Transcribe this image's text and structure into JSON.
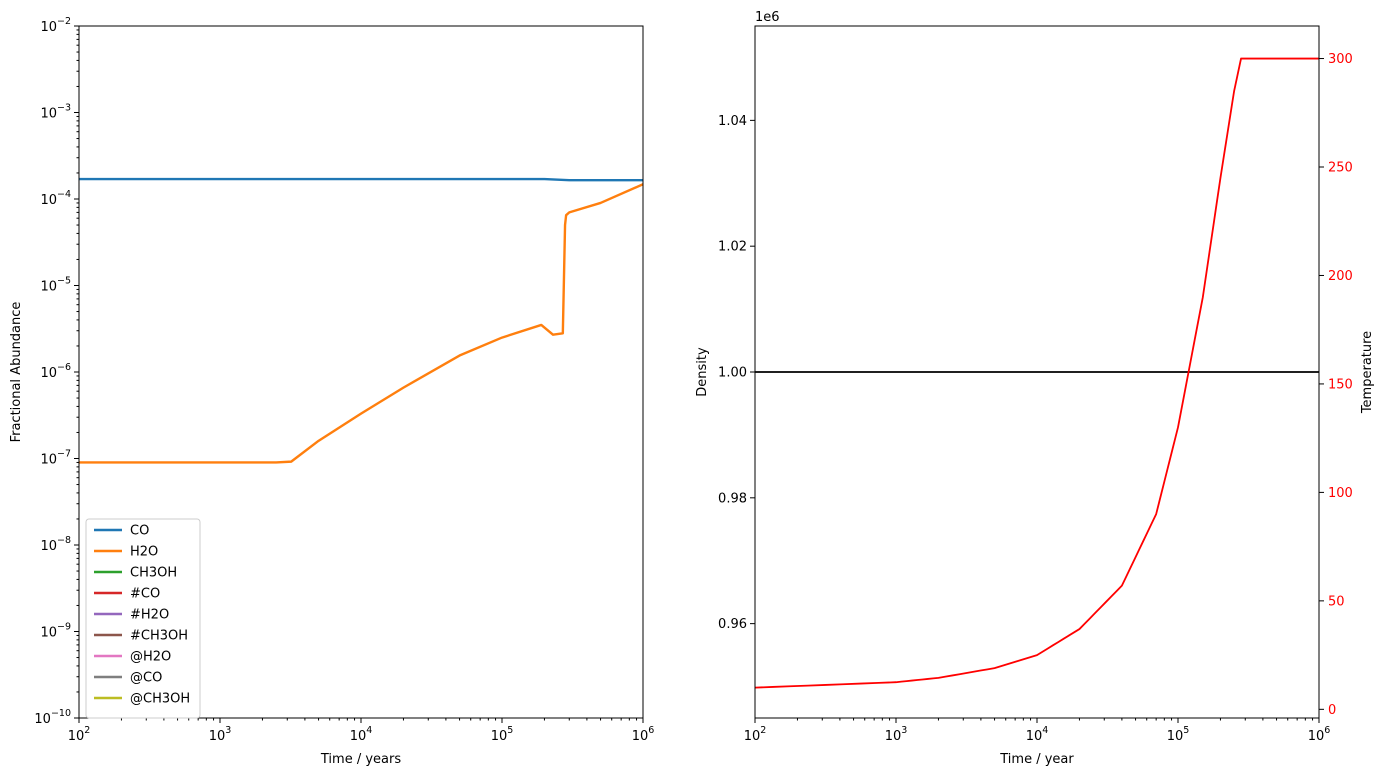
{
  "chart_data": [
    {
      "type": "line",
      "panel": "left",
      "xlabel": "Time / years",
      "ylabel": "Fractional Abundance",
      "xscale": "log",
      "yscale": "log",
      "xlim": [
        100,
        1000000
      ],
      "ylim": [
        1e-10,
        0.01
      ],
      "x_ticks": [
        100,
        1000,
        10000,
        100000,
        1000000
      ],
      "x_tick_labels": [
        {
          "base": "10",
          "exp": "2"
        },
        {
          "base": "10",
          "exp": "3"
        },
        {
          "base": "10",
          "exp": "4"
        },
        {
          "base": "10",
          "exp": "5"
        },
        {
          "base": "10",
          "exp": "6"
        }
      ],
      "y_ticks": [
        1e-10,
        1e-09,
        1e-08,
        1e-07,
        1e-06,
        1e-05,
        0.0001,
        0.001,
        0.01
      ],
      "y_tick_labels": [
        {
          "base": "10",
          "exp": "−10"
        },
        {
          "base": "10",
          "exp": "−9"
        },
        {
          "base": "10",
          "exp": "−8"
        },
        {
          "base": "10",
          "exp": "−7"
        },
        {
          "base": "10",
          "exp": "−6"
        },
        {
          "base": "10",
          "exp": "−5"
        },
        {
          "base": "10",
          "exp": "−4"
        },
        {
          "base": "10",
          "exp": "−3"
        },
        {
          "base": "10",
          "exp": "−2"
        }
      ],
      "legend_position": "lower-left",
      "grid": false,
      "series": [
        {
          "name": "CO",
          "color": "#1f77b4",
          "x": [
            100,
            1000,
            10000,
            100000,
            200000,
            300000,
            1000000
          ],
          "y": [
            0.00017,
            0.00017,
            0.00017,
            0.00017,
            0.00017,
            0.000165,
            0.000165
          ]
        },
        {
          "name": "H2O",
          "color": "#ff7f0e",
          "x": [
            100,
            1000,
            2500,
            3200,
            5000,
            10000,
            20000,
            50000,
            100000,
            190000,
            230000,
            270000,
            280000,
            285000,
            300000,
            500000,
            1000000
          ],
          "y": [
            9e-08,
            9e-08,
            9e-08,
            9.2e-08,
            1.6e-07,
            3.3e-07,
            6.6e-07,
            1.55e-06,
            2.5e-06,
            3.5e-06,
            2.7e-06,
            2.8e-06,
            5e-05,
            6.5e-05,
            7e-05,
            9e-05,
            0.000148
          ]
        },
        {
          "name": "CH3OH",
          "color": "#2ca02c",
          "x": [],
          "y": []
        },
        {
          "name": "#CO",
          "color": "#d62728",
          "x": [],
          "y": []
        },
        {
          "name": "#H2O",
          "color": "#9467bd",
          "x": [],
          "y": []
        },
        {
          "name": "#CH3OH",
          "color": "#8c564b",
          "x": [],
          "y": []
        },
        {
          "name": "@H2O",
          "color": "#e377c2",
          "x": [],
          "y": []
        },
        {
          "name": "@CO",
          "color": "#7f7f7f",
          "x": [],
          "y": []
        },
        {
          "name": "@CH3OH",
          "color": "#bcbd22",
          "x": [],
          "y": []
        }
      ]
    },
    {
      "type": "line",
      "panel": "right",
      "xlabel": "Time / year",
      "ylabel": "Density",
      "y2label": "Temperature",
      "xscale": "log",
      "xlim": [
        100,
        1000000
      ],
      "ylim": [
        0.945,
        1.055
      ],
      "y_offset_text": "1e6",
      "y2lim": [
        -4,
        315
      ],
      "x_ticks": [
        100,
        1000,
        10000,
        100000,
        1000000
      ],
      "x_tick_labels": [
        {
          "base": "10",
          "exp": "2"
        },
        {
          "base": "10",
          "exp": "3"
        },
        {
          "base": "10",
          "exp": "4"
        },
        {
          "base": "10",
          "exp": "5"
        },
        {
          "base": "10",
          "exp": "6"
        }
      ],
      "y_ticks": [
        0.96,
        0.98,
        1.0,
        1.02,
        1.04
      ],
      "y_tick_labels": [
        "0.96",
        "0.98",
        "1.00",
        "1.02",
        "1.04"
      ],
      "y2_ticks": [
        0,
        50,
        100,
        150,
        200,
        250,
        300
      ],
      "y2_tick_labels": [
        "0",
        "50",
        "100",
        "150",
        "200",
        "250",
        "300"
      ],
      "y2_color": "#ff0000",
      "grid": false,
      "series": [
        {
          "name": "",
          "axis": "left",
          "color": "#000000",
          "x": [
            100,
            1000000
          ],
          "y": [
            1.0,
            1.0
          ]
        },
        {
          "name": "",
          "axis": "right",
          "color": "#ff0000",
          "x": [
            100,
            1000,
            2000,
            5000,
            10000,
            20000,
            40000,
            70000,
            100000,
            150000,
            200000,
            250000,
            280000,
            1000000
          ],
          "y": [
            10,
            12.5,
            14.5,
            19,
            25,
            37,
            57,
            90,
            130,
            190,
            245,
            285,
            300,
            300
          ]
        }
      ]
    }
  ]
}
